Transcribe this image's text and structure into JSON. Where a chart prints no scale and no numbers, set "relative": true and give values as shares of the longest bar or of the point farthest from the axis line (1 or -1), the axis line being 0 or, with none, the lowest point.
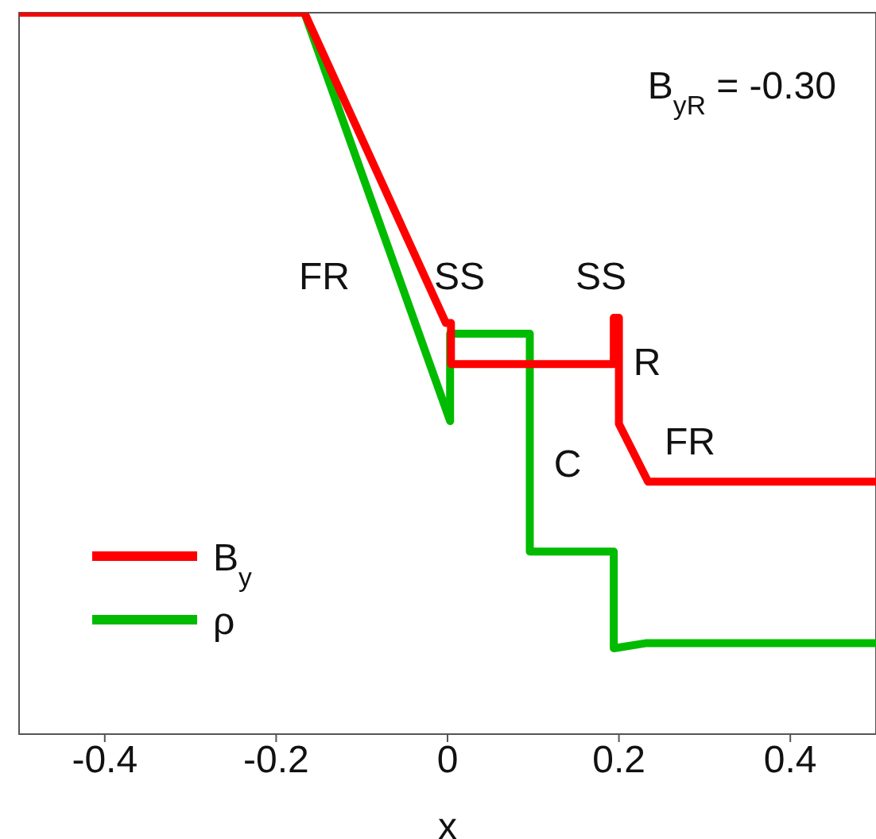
{
  "chart_data": {
    "type": "line",
    "relative": true,
    "xlabel": "x",
    "xlim": [
      -0.5,
      0.5
    ],
    "xticks": [
      -0.4,
      -0.2,
      0,
      0.2,
      0.4
    ],
    "tick_labels": "x",
    "legend": "bottom left",
    "marker": "none",
    "line_style": "solid",
    "series": [
      {
        "name": "B$_{y}$",
        "color": "#ff0000",
        "x": [
          -0.5,
          -0.167,
          -0.002,
          0.004,
          0.004,
          0.194,
          0.194,
          0.2,
          0.2,
          0.234,
          0.5
        ],
        "values": [
          1,
          1,
          0.57,
          0.57,
          0.513,
          0.513,
          0.577,
          0.577,
          0.43,
          0.35,
          0.35
        ]
      },
      {
        "name": "ρ",
        "color": "#00bb00",
        "x": [
          -0.167,
          0.003,
          0.003,
          0.096,
          0.096,
          0.194,
          0.194,
          0.231,
          0.5
        ],
        "values": [
          1,
          0.434,
          0.555,
          0.555,
          0.253,
          0.253,
          0.119,
          0.126,
          0.126
        ]
      }
    ],
    "annotations": [
      "B$_{yR}$ = -0.30",
      "FR",
      "SS",
      "SS",
      "R",
      "FR",
      "C"
    ]
  }
}
